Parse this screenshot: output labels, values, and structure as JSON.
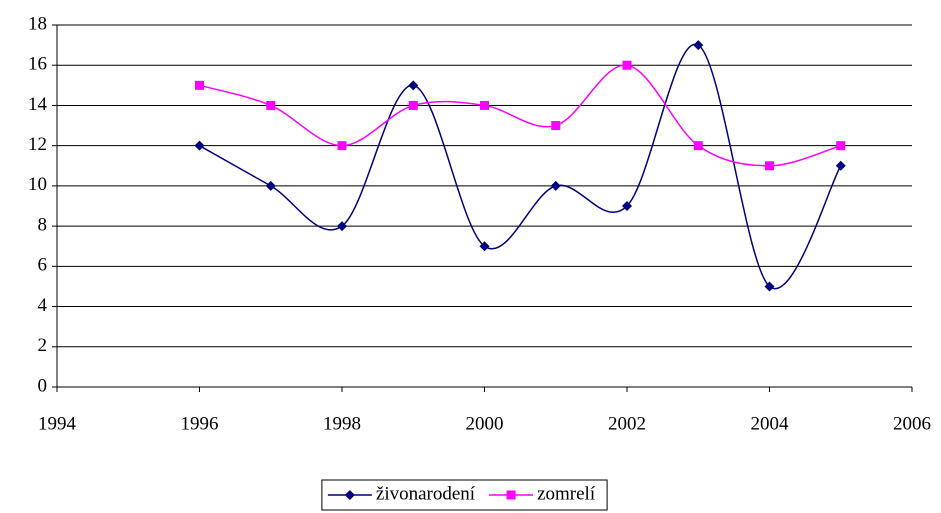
{
  "chart_data": {
    "type": "line",
    "x": [
      1996,
      1997,
      1998,
      1999,
      2000,
      2001,
      2002,
      2003,
      2004,
      2005
    ],
    "series": [
      {
        "name": "živonarodení",
        "color": "#000080",
        "marker": "diamond",
        "values": [
          12,
          10,
          8,
          15,
          7,
          10,
          9,
          17,
          5,
          11
        ]
      },
      {
        "name": "zomrelí",
        "color": "#ff00ff",
        "marker": "square",
        "values": [
          15,
          14,
          12,
          14,
          14,
          13,
          16,
          12,
          11,
          12
        ]
      }
    ],
    "xlim": [
      1994,
      2006
    ],
    "xticks": [
      1994,
      1996,
      1998,
      2000,
      2002,
      2004,
      2006
    ],
    "ylim": [
      0,
      18
    ],
    "yticks": [
      0,
      2,
      4,
      6,
      8,
      10,
      12,
      14,
      16,
      18
    ],
    "grid": true,
    "smooth": true,
    "legend": "bottom"
  }
}
